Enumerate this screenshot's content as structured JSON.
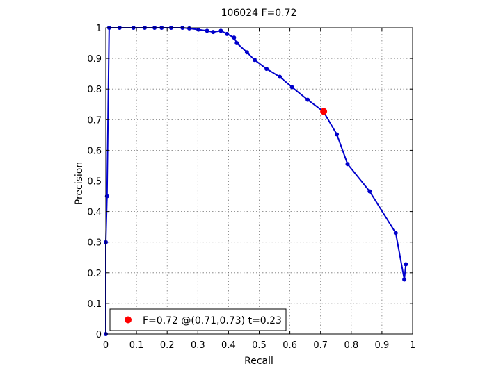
{
  "chart_data": {
    "type": "line",
    "title": "106024 F=0.72",
    "xlabel": "Recall",
    "ylabel": "Precision",
    "xlim": [
      0,
      1
    ],
    "ylim": [
      0,
      1
    ],
    "grid": true,
    "x_ticks": [
      "0",
      "0.1",
      "0.2",
      "0.3",
      "0.4",
      "0.5",
      "0.6",
      "0.7",
      "0.8",
      "0.9",
      "1"
    ],
    "y_ticks": [
      "0",
      "0.1",
      "0.2",
      "0.3",
      "0.4",
      "0.5",
      "0.6",
      "0.7",
      "0.8",
      "0.9",
      "1"
    ],
    "series": [
      {
        "color": "#0000cc",
        "x": [
          0.0,
          0.0,
          0.004,
          0.011,
          0.045,
          0.09,
          0.127,
          0.159,
          0.182,
          0.213,
          0.25,
          0.272,
          0.302,
          0.33,
          0.35,
          0.375,
          0.395,
          0.418,
          0.427,
          0.46,
          0.485,
          0.524,
          0.567,
          0.607,
          0.658,
          0.709,
          0.753,
          0.788,
          0.86,
          0.945,
          0.973,
          0.978
        ],
        "y": [
          0.0,
          0.3,
          0.45,
          1.0,
          1.0,
          1.0,
          1.0,
          1.0,
          1.0,
          1.0,
          1.0,
          0.998,
          0.994,
          0.99,
          0.986,
          0.99,
          0.98,
          0.968,
          0.95,
          0.92,
          0.895,
          0.866,
          0.84,
          0.806,
          0.765,
          0.727,
          0.652,
          0.555,
          0.466,
          0.33,
          0.178,
          0.228
        ]
      }
    ],
    "highlight_point": {
      "x": 0.71,
      "y": 0.727,
      "color": "#ff0000"
    },
    "legend": {
      "location": "bottom-left",
      "label": "F=0.72 @(0.71,0.73) t=0.23"
    }
  }
}
